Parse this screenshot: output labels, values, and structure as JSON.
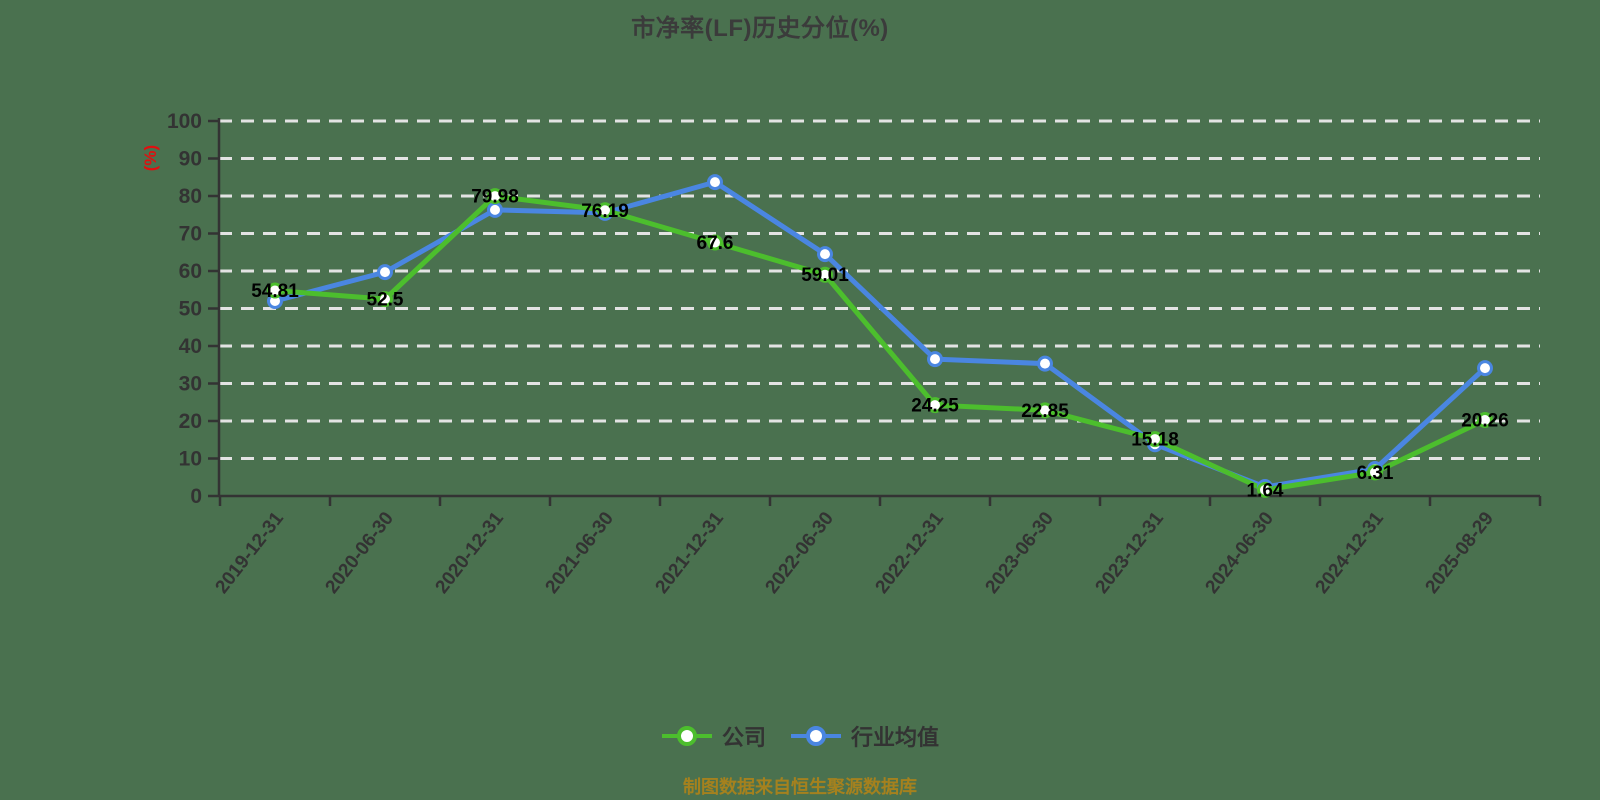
{
  "title": "市净率(LF)历史分位(%)",
  "caption": "制图数据来自恒生聚源数据库",
  "colors": {
    "background": "#4a714f",
    "title": "#3b3b3b",
    "axis": "#333333",
    "axis_label": "#333333",
    "grid": "#e3e3e3",
    "data_label": "#000000",
    "y_axis_name": "#e01010",
    "caption": "#a5811e",
    "legend_text": "#333333",
    "marker_fill": "#ffffff",
    "company": "#4cbe2d",
    "industry": "#4a86e1"
  },
  "legend": {
    "items": [
      {
        "label": "公司",
        "series_key": "company"
      },
      {
        "label": "行业均值",
        "series_key": "industry"
      }
    ]
  },
  "chart_data": {
    "type": "line",
    "title": "市净率(LF)历史分位(%)",
    "xlabel": "",
    "ylabel": "(%)",
    "ylim": [
      0,
      100
    ],
    "y_ticks": [
      0,
      10,
      20,
      30,
      40,
      50,
      60,
      70,
      80,
      90,
      100
    ],
    "grid": "horizontal-dashed-white",
    "legend_position": "bottom",
    "categories": [
      "2019-12-31",
      "2020-06-30",
      "2020-12-31",
      "2021-06-30",
      "2021-12-31",
      "2022-06-30",
      "2022-12-31",
      "2023-06-30",
      "2023-12-31",
      "2024-06-30",
      "2024-12-31",
      "2025-08-29"
    ],
    "series": [
      {
        "name": "公司",
        "color_key": "company",
        "labeled": true,
        "values": [
          54.81,
          52.5,
          79.98,
          76.19,
          67.6,
          59.01,
          24.25,
          22.85,
          15.18,
          1.64,
          6.31,
          20.26
        ],
        "labels": [
          "54.81",
          "52.5",
          "79.98",
          "76.19",
          "67.6",
          "59.01",
          "24.25",
          "22.85",
          "15.18",
          "1.64",
          "6.31",
          "20.26"
        ]
      },
      {
        "name": "行业均值",
        "color_key": "industry",
        "labeled": false,
        "values_estimated": true,
        "values": [
          52,
          59.7,
          76.3,
          75.5,
          83.7,
          64.5,
          36.5,
          35.3,
          13.8,
          2.4,
          7.2,
          34.1
        ]
      }
    ]
  }
}
